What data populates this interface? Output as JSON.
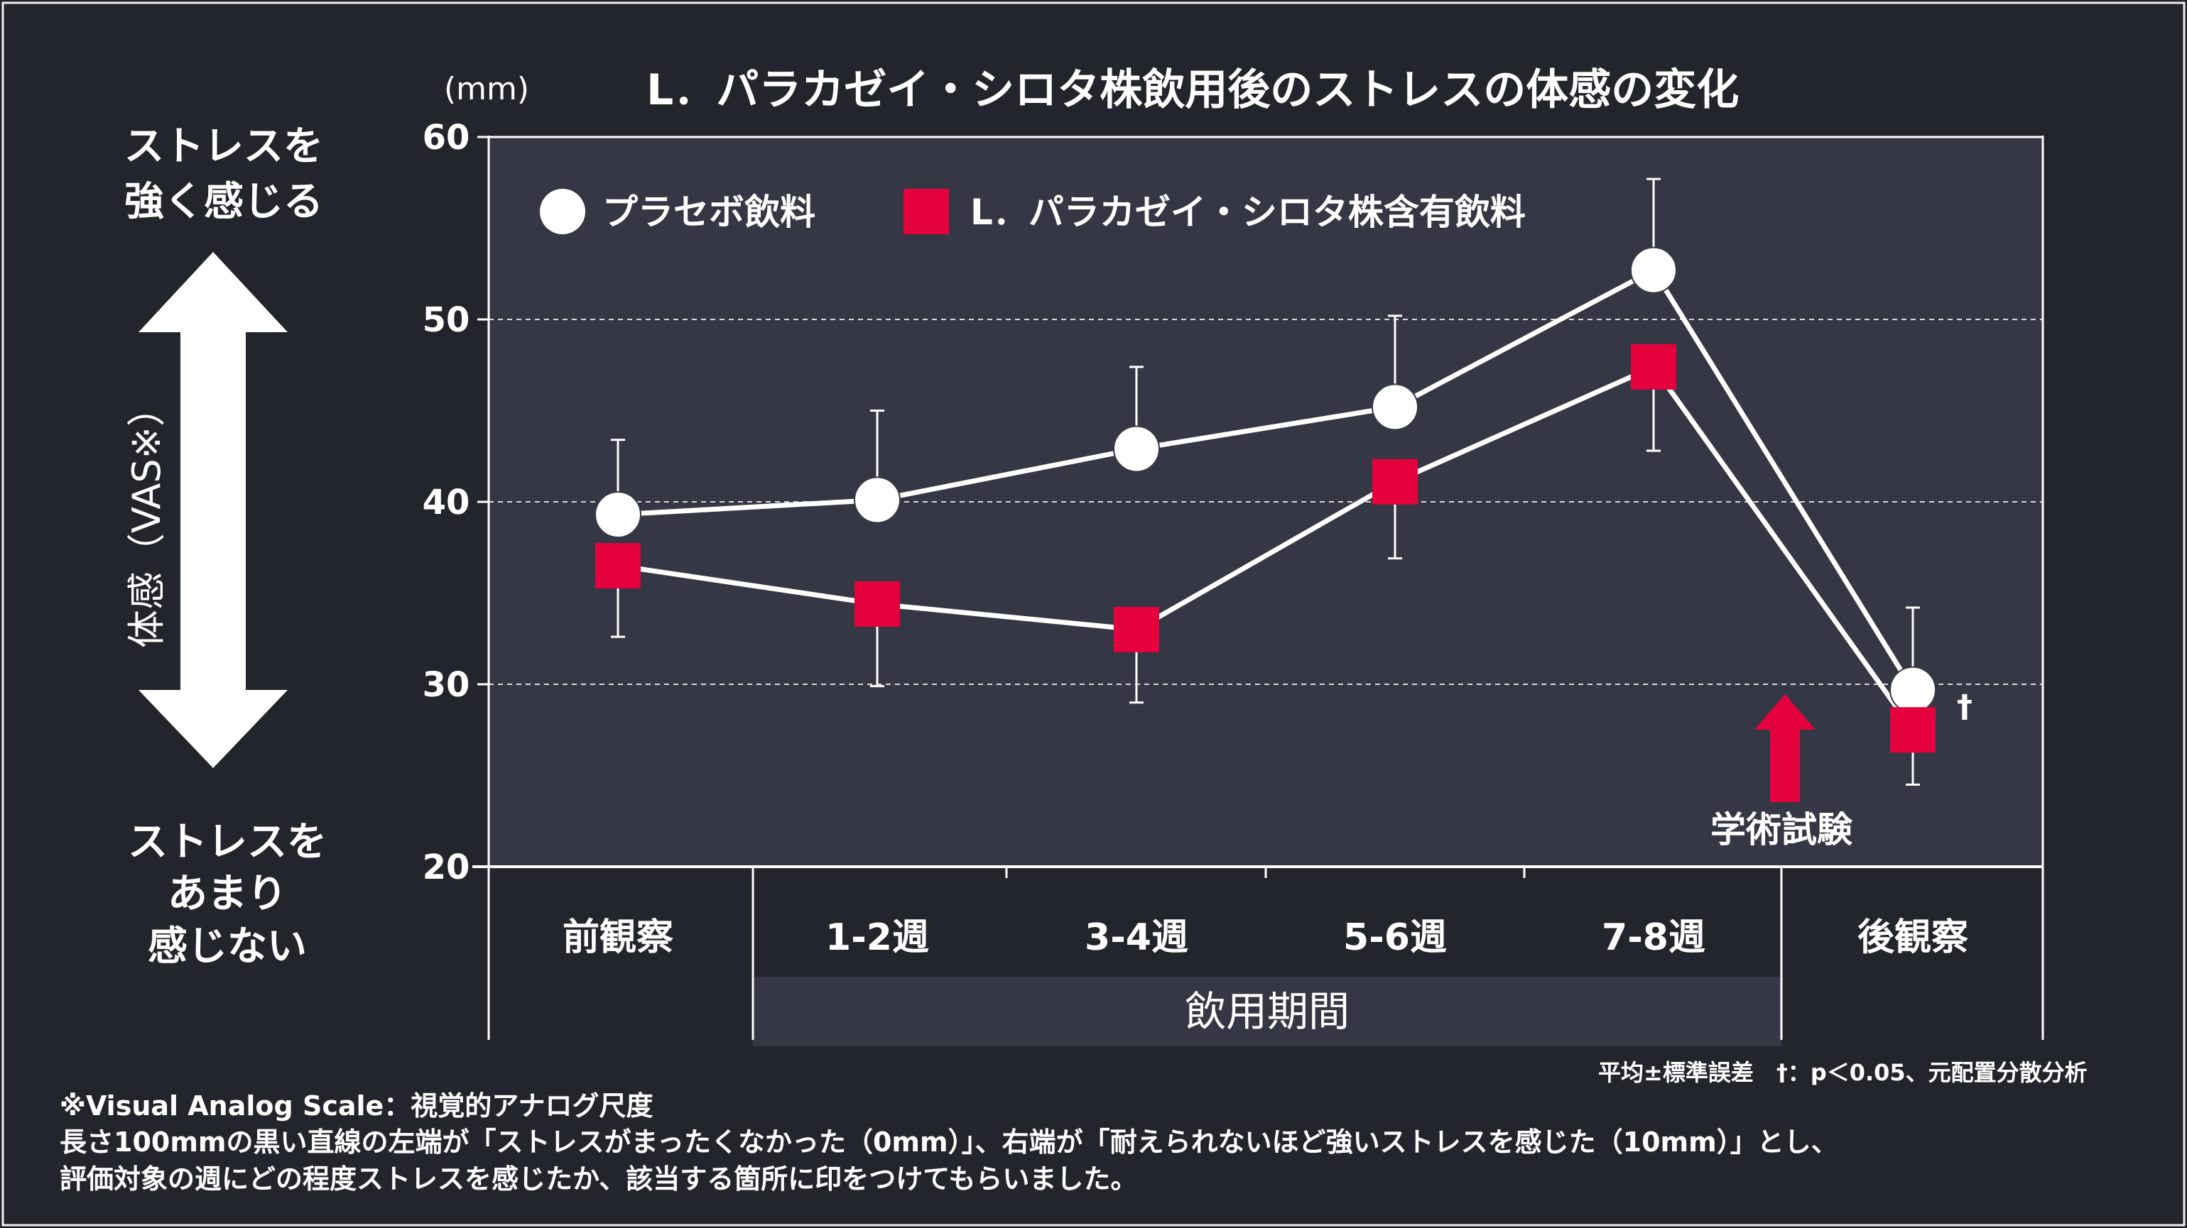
{
  "chart_data": {
    "type": "line",
    "title": "L．パラカゼイ・シロタ株飲用後のストレスの体感の変化",
    "unit_label": "(mm)",
    "ylim": [
      20,
      60
    ],
    "yticks": [
      "20",
      "30",
      "40",
      "50",
      "60"
    ],
    "ylabel": "体感（VAS※）",
    "y_top_label": [
      "ストレスを",
      "強く感じる"
    ],
    "y_bottom_label": [
      "ストレスを",
      "あまり",
      "感じない"
    ],
    "categories": [
      "前観察",
      "1-2週",
      "3-4週",
      "5-6週",
      "7-8週",
      "後観察"
    ],
    "period_label": "飲用期間",
    "grid": "dashed at 30, 40, 50",
    "legend_position": "top-left",
    "series": [
      {
        "name": "プラセボ飲料",
        "marker": "circle",
        "color": "#ffffff",
        "values": [
          39.3,
          40.1,
          42.9,
          45.2,
          52.7,
          29.7
        ],
        "err_upper": [
          43.4,
          45.0,
          47.4,
          50.2,
          57.7,
          34.2
        ],
        "err_lower": [
          39.3,
          40.1,
          42.9,
          45.2,
          52.7,
          29.7
        ]
      },
      {
        "name": "L．パラカゼイ・シロタ株含有飲料",
        "marker": "square",
        "color": "#e5003e",
        "values": [
          36.5,
          34.4,
          33.0,
          41.1,
          47.4,
          27.5
        ],
        "err_upper": [
          36.5,
          34.4,
          33.0,
          41.1,
          47.4,
          27.5
        ],
        "err_lower": [
          32.6,
          29.9,
          29.0,
          36.9,
          42.8,
          24.5
        ]
      }
    ],
    "annotations": {
      "significance_mark": "†",
      "arrow_label": "学術試験",
      "arrow_color": "#e5003e"
    }
  },
  "notes": {
    "stats": "平均±標準誤差　†：p＜0.05、元配置分散分析",
    "footnote_1": "※Visual Analog Scale：視覚的アナログ尺度",
    "footnote_2": "長さ100mmの黒い直線の左端が「ストレスがまったくなかった（0mm）」、右端が「耐えられないほど強いストレスを感じた（10mm）」とし、",
    "footnote_3": "評価対象の週にどの程度ストレスを感じたか、該当する箇所に印をつけてもらいました。"
  }
}
